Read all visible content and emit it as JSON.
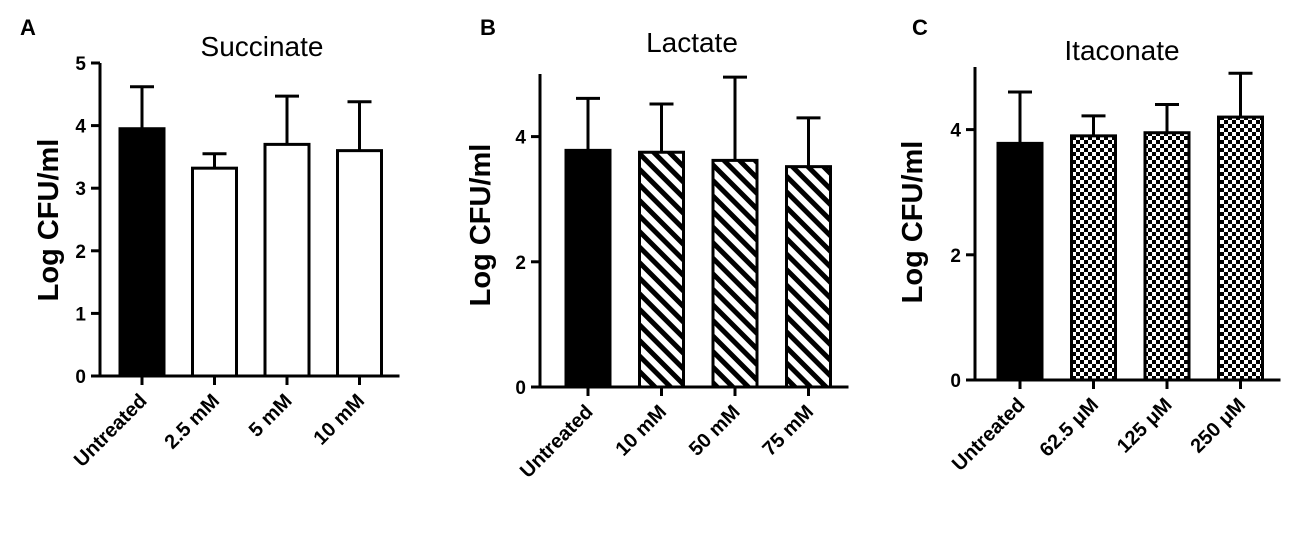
{
  "chart_data": [
    {
      "type": "bar",
      "panel": "A",
      "title": "Succinate",
      "ylabel": "Log CFU/ml",
      "xlabel": "",
      "ylim": [
        0,
        5
      ],
      "yticks": [
        0,
        1,
        2,
        3,
        4,
        5
      ],
      "categories": [
        "Untreated",
        "2.5 mM",
        "5 mM",
        "10 mM"
      ],
      "values": [
        3.95,
        3.32,
        3.7,
        3.6
      ],
      "errors": [
        0.67,
        0.23,
        0.77,
        0.78
      ],
      "fills": [
        "solid",
        "none",
        "none",
        "none"
      ],
      "grid": false,
      "legend": "none"
    },
    {
      "type": "bar",
      "panel": "B",
      "title": "Lactate",
      "ylabel": "Log CFU/ml",
      "xlabel": "",
      "ylim": [
        0,
        5
      ],
      "yticks": [
        0,
        2,
        4
      ],
      "categories": [
        "Untreated",
        "10 mM",
        "50 mM",
        "75 mM"
      ],
      "values": [
        3.78,
        3.75,
        3.62,
        3.52
      ],
      "errors": [
        0.83,
        0.77,
        1.33,
        0.78
      ],
      "fills": [
        "solid",
        "diagonal-hatch",
        "diagonal-hatch",
        "diagonal-hatch"
      ],
      "grid": false,
      "legend": "none"
    },
    {
      "type": "bar",
      "panel": "C",
      "title": "Itaconate",
      "ylabel": "Log CFU/ml",
      "xlabel": "",
      "ylim": [
        0,
        5
      ],
      "yticks": [
        0,
        2,
        4
      ],
      "categories": [
        "Untreated",
        "62.5 μM",
        "125 μM",
        "250 μM"
      ],
      "values": [
        3.78,
        3.9,
        3.95,
        4.2
      ],
      "errors": [
        0.82,
        0.32,
        0.45,
        0.7
      ],
      "fills": [
        "solid",
        "checkerboard",
        "checkerboard",
        "checkerboard"
      ],
      "grid": false,
      "legend": "none"
    }
  ],
  "colors": {
    "ink": "#000000",
    "background": "#ffffff"
  }
}
